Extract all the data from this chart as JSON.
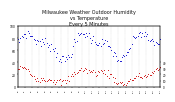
{
  "title": "Milwaukee Weather Outdoor Humidity\nvs Temperature\nEvery 5 Minutes",
  "title_fontsize": 3.5,
  "title_color": "#111111",
  "bg_color": "#ffffff",
  "plot_bg_color": "#ffffff",
  "grid_color": "#bbbbbb",
  "blue_color": "#0000cc",
  "red_color": "#cc0000",
  "ylim": [
    0,
    100
  ],
  "n_points": 120,
  "seed": 7,
  "n_grid": 20,
  "dot_size": 0.4
}
